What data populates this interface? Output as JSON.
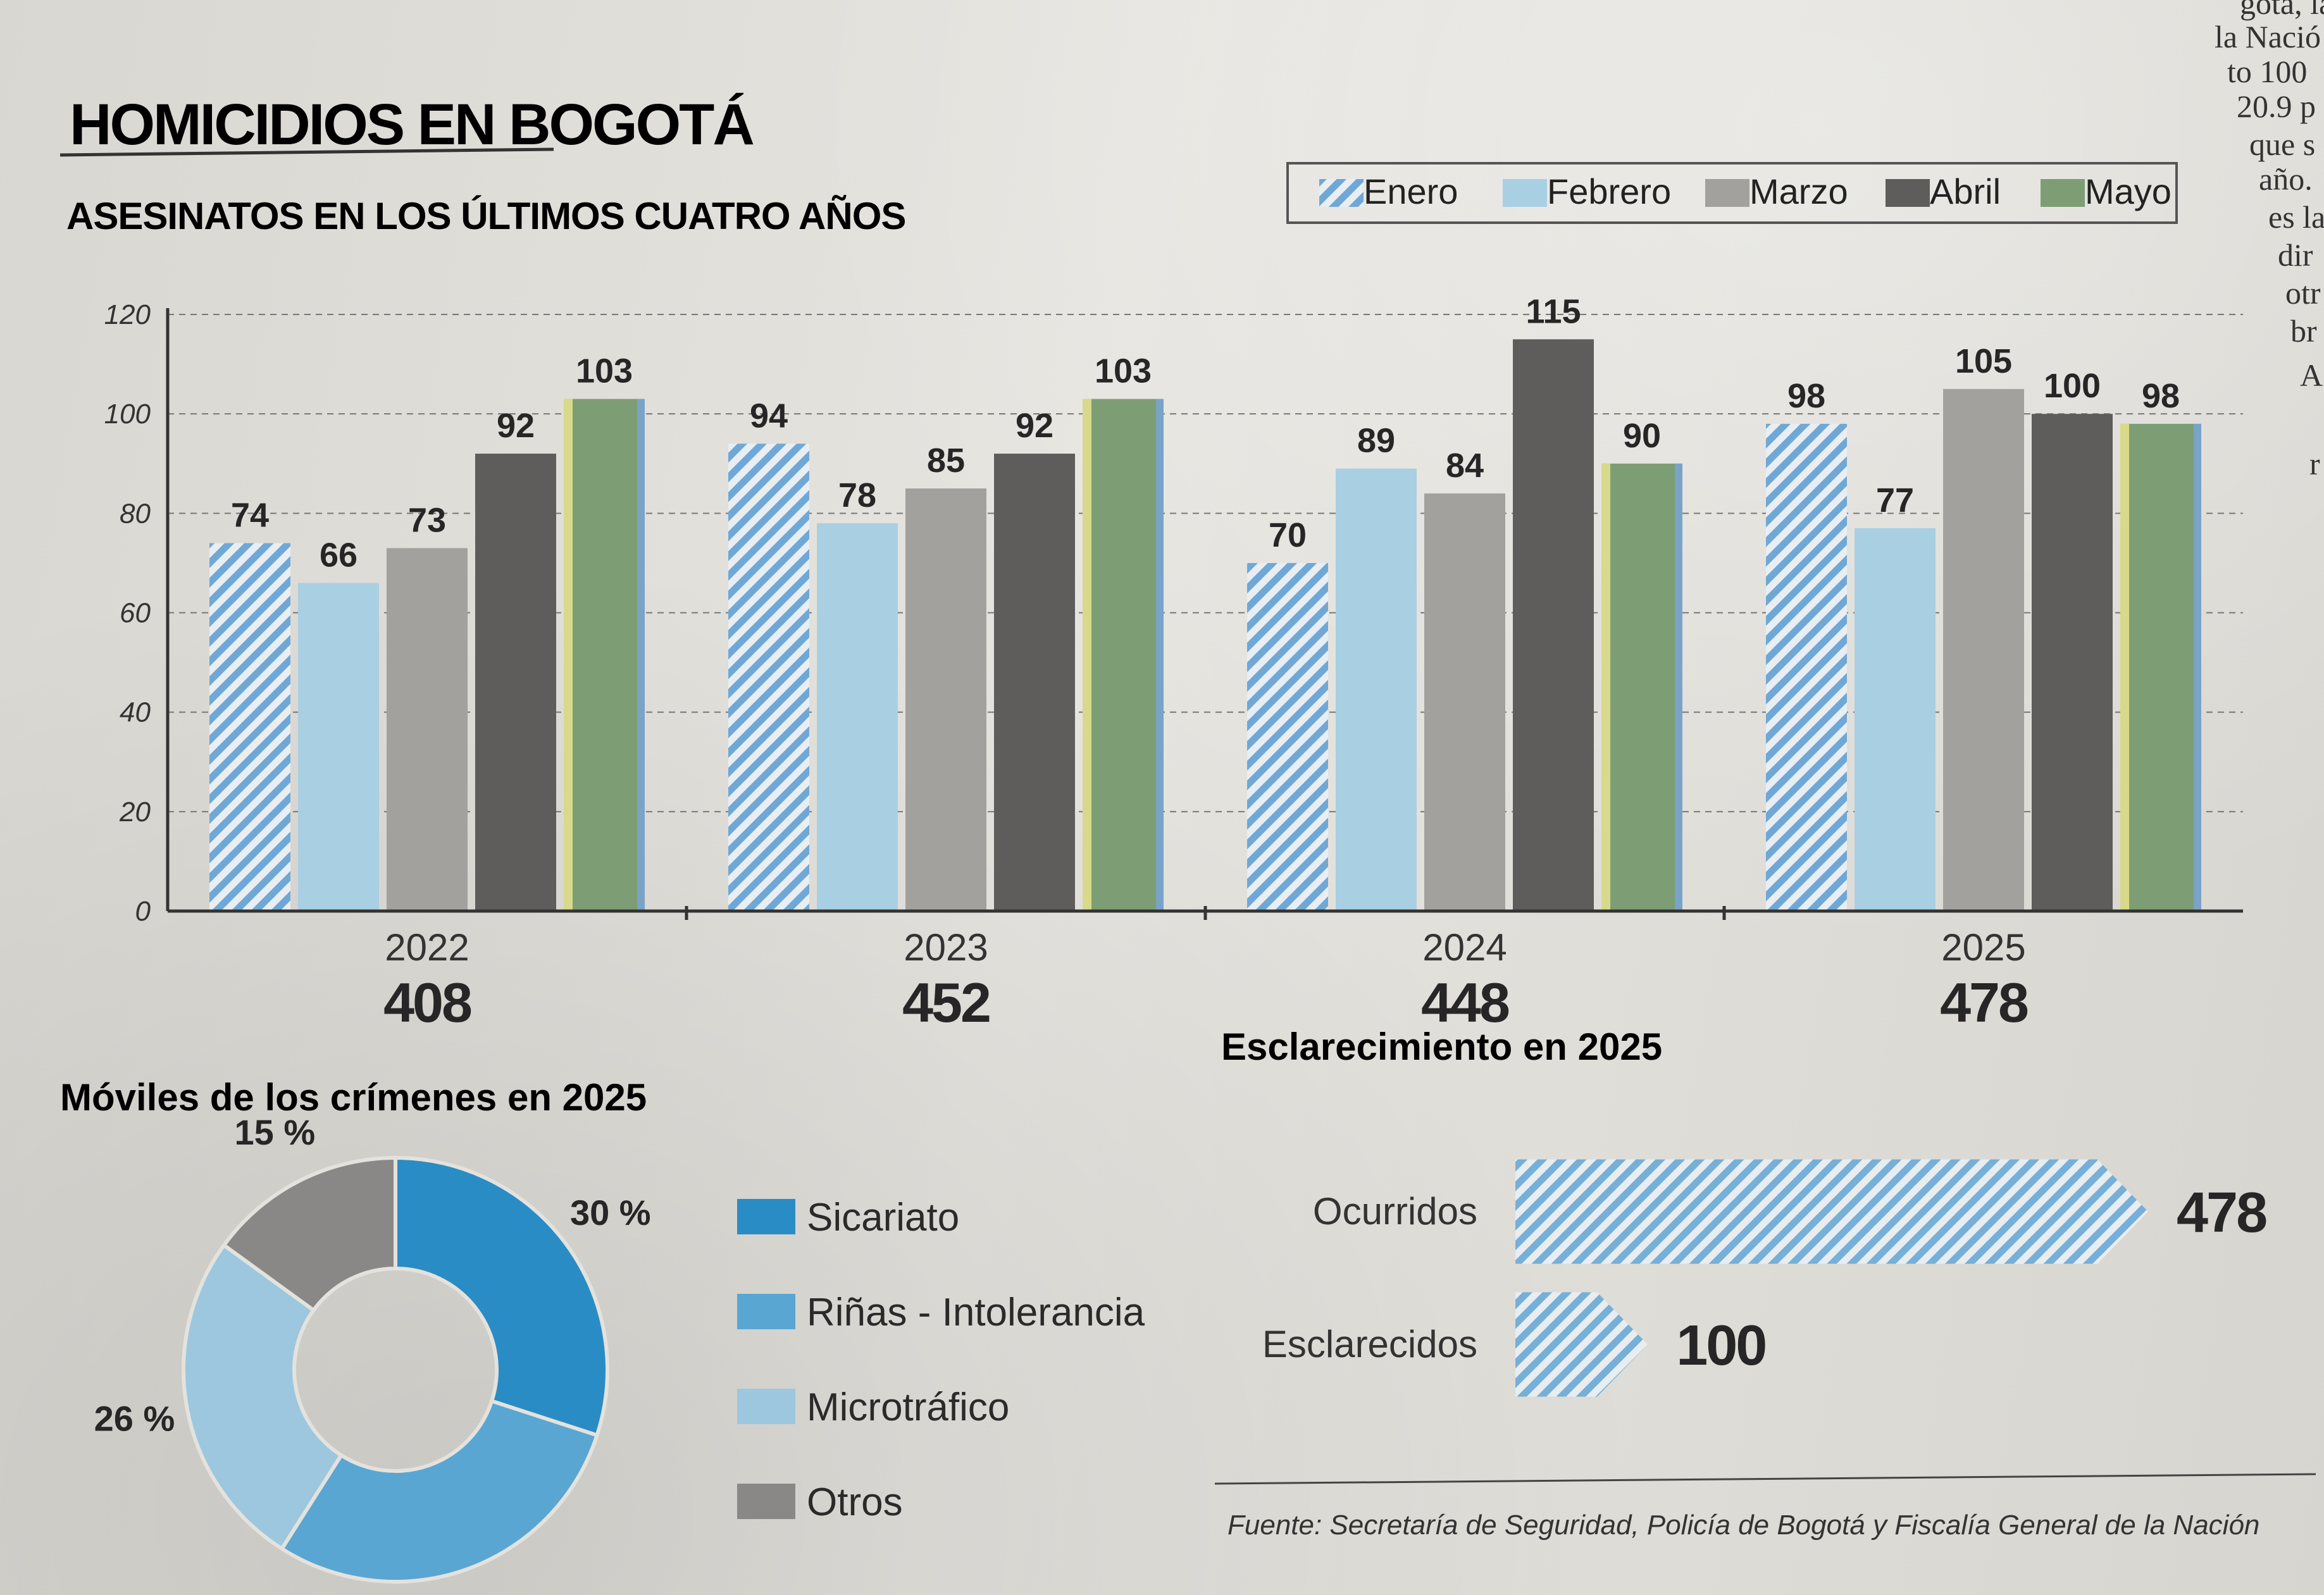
{
  "header": {
    "title": "HOMICIDIOS EN BOGOTÁ",
    "subtitle": "ASESINATOS EN LOS ÚLTIMOS CUATRO AÑOS"
  },
  "legend": [
    {
      "label": "Enero",
      "color": "#6fa8d6",
      "pattern": "hatch"
    },
    {
      "label": "Febrero",
      "color": "#a9cfe3",
      "pattern": "solid"
    },
    {
      "label": "Marzo",
      "color": "#a3a19d",
      "pattern": "solid"
    },
    {
      "label": "Abril",
      "color": "#5e5d5b",
      "pattern": "solid"
    },
    {
      "label": "Mayo",
      "color": "#7d9e74",
      "pattern": "solid"
    }
  ],
  "chart_data": [
    {
      "type": "bar",
      "title": "ASESINATOS EN LOS ÚLTIMOS CUATRO AÑOS",
      "categories": [
        "2022",
        "2023",
        "2024",
        "2025"
      ],
      "totals": [
        "408",
        "452",
        "448",
        "478"
      ],
      "series": [
        {
          "name": "Enero",
          "values": [
            74,
            94,
            70,
            98
          ]
        },
        {
          "name": "Febrero",
          "values": [
            66,
            78,
            89,
            77
          ]
        },
        {
          "name": "Marzo",
          "values": [
            73,
            85,
            84,
            105
          ]
        },
        {
          "name": "Abril",
          "values": [
            92,
            92,
            115,
            100
          ]
        },
        {
          "name": "Mayo",
          "values": [
            103,
            103,
            90,
            98
          ]
        }
      ],
      "yticks": [
        "0",
        "20",
        "40",
        "60",
        "80",
        "100",
        "120"
      ],
      "ylim": [
        0,
        120
      ],
      "grid": true,
      "legend_position": "top-right"
    },
    {
      "type": "pie",
      "title": "Móviles de los crímenes en 2025",
      "slices": [
        {
          "label": "Sicariato",
          "value": 30,
          "display": "30 %",
          "color": "#2a8cc4"
        },
        {
          "label": "Riñas - Intolerancia",
          "value": 29,
          "display": "29 %",
          "color": "#5aa6d3"
        },
        {
          "label": "Microtráfico",
          "value": 26,
          "display": "26 %",
          "color": "#9cc7df"
        },
        {
          "label": "Otros",
          "value": 15,
          "display": "15 %",
          "color": "#8a8886"
        }
      ]
    },
    {
      "type": "bar",
      "orientation": "horizontal",
      "title": "Esclarecimiento en 2025",
      "categories": [
        "Ocurridos",
        "Esclarecidos"
      ],
      "values": [
        478,
        100
      ],
      "display": [
        "478",
        "100"
      ]
    }
  ],
  "source": "Fuente: Secretaría de Seguridad, Policía de Bogotá y Fiscalía General de la Nación",
  "column_fragments": [
    "gota, la",
    "la Nació",
    "to 100",
    "20.9 p",
    "que s",
    "año.",
    "es la",
    "dir",
    "otr",
    "br",
    "A",
    "r"
  ]
}
